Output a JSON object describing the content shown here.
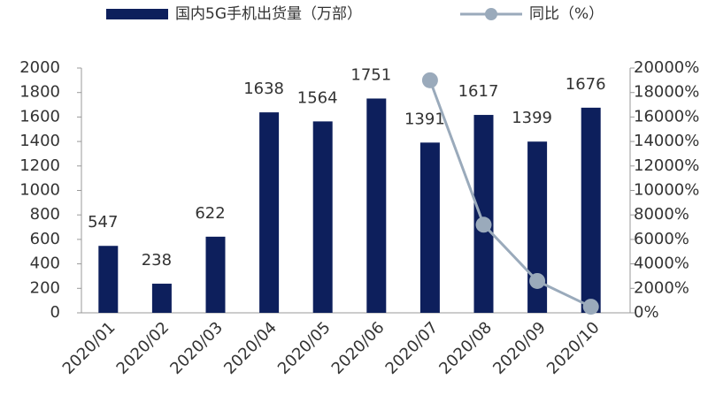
{
  "chart_data": {
    "type": "bar-line",
    "categories": [
      "2020/01",
      "2020/02",
      "2020/03",
      "2020/04",
      "2020/05",
      "2020/06",
      "2020/07",
      "2020/08",
      "2020/09",
      "2020/10"
    ],
    "series": [
      {
        "name": "国内5G手机出货量（万部）",
        "type": "bar",
        "color": "#0d1f5c",
        "values": [
          547,
          238,
          622,
          1638,
          1564,
          1751,
          1391,
          1617,
          1399,
          1676
        ]
      },
      {
        "name": "同比（%）",
        "type": "line",
        "axis": "y2",
        "color": "#9aaabb",
        "values": [
          null,
          null,
          null,
          null,
          null,
          null,
          19000,
          7200,
          2600,
          500
        ]
      }
    ],
    "ylim": [
      0,
      2000
    ],
    "yticks": [
      0,
      200,
      400,
      600,
      800,
      1000,
      1200,
      1400,
      1600,
      1800,
      2000
    ],
    "y2lim": [
      0,
      20000
    ],
    "y2ticks": [
      {
        "value": 0,
        "label": "0%"
      },
      {
        "value": 2000,
        "label": "2000%"
      },
      {
        "value": 4000,
        "label": "4000%"
      },
      {
        "value": 6000,
        "label": "6000%"
      },
      {
        "value": 8000,
        "label": "8000%"
      },
      {
        "value": 10000,
        "label": "10000%"
      },
      {
        "value": 12000,
        "label": "12000%"
      },
      {
        "value": 14000,
        "label": "14000%"
      },
      {
        "value": 16000,
        "label": "16000%"
      },
      {
        "value": 18000,
        "label": "18000%"
      },
      {
        "value": 20000,
        "label": "20000%"
      }
    ],
    "legend": "top"
  }
}
